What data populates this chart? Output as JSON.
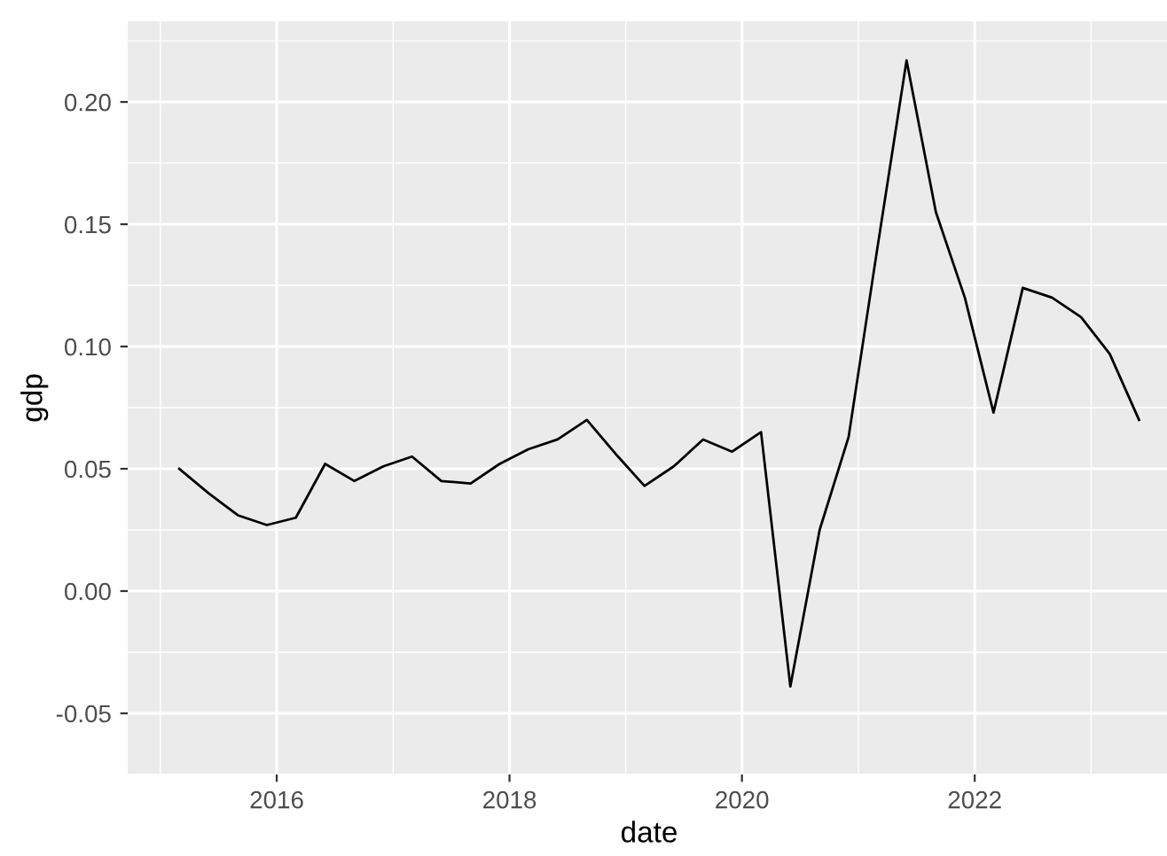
{
  "chart_data": {
    "type": "line",
    "xlabel": "date",
    "ylabel": "gdp",
    "x": [
      "2015-03",
      "2015-06",
      "2015-09",
      "2015-12",
      "2016-03",
      "2016-06",
      "2016-09",
      "2016-12",
      "2017-03",
      "2017-06",
      "2017-09",
      "2017-12",
      "2018-03",
      "2018-06",
      "2018-09",
      "2018-12",
      "2019-03",
      "2019-06",
      "2019-09",
      "2019-12",
      "2020-03",
      "2020-06",
      "2020-09",
      "2020-12",
      "2021-03",
      "2021-06",
      "2021-09",
      "2021-12",
      "2022-03",
      "2022-06",
      "2022-09",
      "2022-12",
      "2023-03",
      "2023-06"
    ],
    "series": [
      {
        "color": "#000000",
        "values": [
          0.05,
          0.04,
          0.031,
          0.027,
          0.03,
          0.052,
          0.045,
          0.051,
          0.055,
          0.045,
          0.044,
          0.052,
          0.058,
          0.062,
          0.07,
          0.056,
          0.043,
          0.051,
          0.062,
          0.057,
          0.065,
          -0.039,
          0.025,
          0.063,
          0.14,
          0.217,
          0.155,
          0.12,
          0.073,
          0.124,
          0.12,
          0.112,
          0.097,
          0.07
        ]
      }
    ],
    "xlim": [
      "2014-09-20",
      "2023-09-08"
    ],
    "xticks": [
      "2016",
      "2018",
      "2020",
      "2022"
    ],
    "ylim": [
      -0.05,
      0.233
    ],
    "yticks": [
      {
        "value": -0.05,
        "label": "-0.05"
      },
      {
        "value": 0.0,
        "label": "0.00"
      },
      {
        "value": 0.05,
        "label": "0.05"
      },
      {
        "value": 0.1,
        "label": "0.10"
      },
      {
        "value": 0.15,
        "label": "0.15"
      },
      {
        "value": 0.2,
        "label": "0.20"
      }
    ],
    "grid": true,
    "line_style": "solid",
    "marker": "none"
  }
}
